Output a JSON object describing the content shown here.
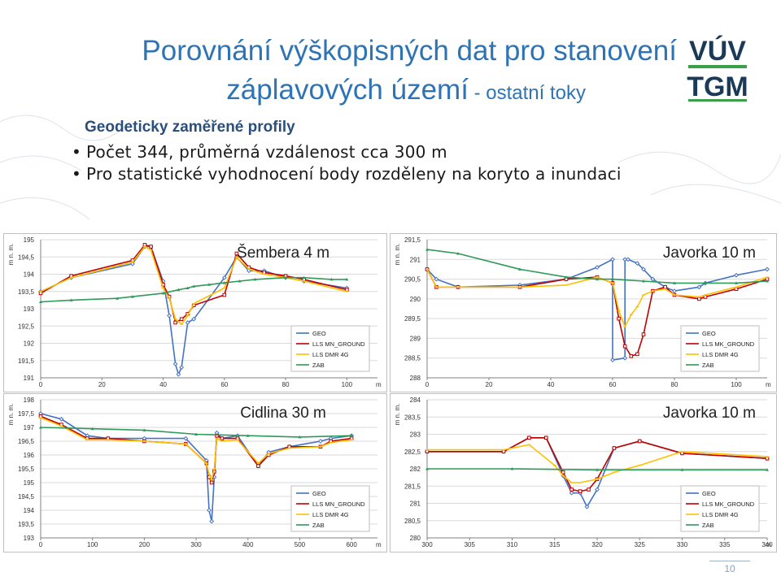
{
  "title": {
    "line1": "Porovnání výškopisných dat pro stanovení",
    "line2": "záplavových území",
    "line2_suffix": " - ostatní toky"
  },
  "logo": {
    "top": "VÚV",
    "bottom": "TGM"
  },
  "heading": "Geodeticky zaměřené profily",
  "bullets": [
    "Počet 344, průměrná vzdálenost cca 300 m",
    "Pro statistické vyhodnocení body rozděleny na koryto a inundaci"
  ],
  "page_number": "10",
  "colors": {
    "GEO": "#4472c4",
    "LLS": "#c00000",
    "DMR": "#ffc000",
    "ZAB": "#2e9a5a",
    "accent": "#2e74b5"
  },
  "chart_data": [
    {
      "type": "line",
      "title": "Šembera 4 m",
      "ylabel": "m n. m.",
      "xlabel": "m",
      "xlim": [
        0,
        110
      ],
      "ylim": [
        191,
        195
      ],
      "xticks": [
        0,
        20,
        40,
        60,
        80,
        100
      ],
      "yticks": [
        191,
        191.5,
        192,
        192.5,
        193,
        193.5,
        194,
        194.5,
        195
      ],
      "ytick_labels": [
        "191",
        "191,5",
        "192",
        "192,5",
        "193",
        "193,5",
        "194",
        "194,5",
        "195"
      ],
      "legend": [
        "GEO",
        "LLS MN_GROUND",
        "LLS DMR 4G",
        "ZAB"
      ],
      "series": [
        {
          "name": "GEO",
          "x": [
            0,
            10,
            30,
            34,
            36,
            40,
            42,
            44,
            45,
            46,
            48,
            50,
            60,
            64,
            68,
            73,
            80,
            86,
            100
          ],
          "y": [
            193.5,
            193.9,
            194.3,
            194.8,
            194.8,
            193.8,
            192.8,
            191.4,
            191.1,
            191.3,
            192.6,
            192.7,
            193.9,
            194.5,
            194.1,
            194.1,
            193.9,
            193.8,
            193.6
          ]
        },
        {
          "name": "LLS MN_GROUND",
          "x": [
            0,
            10,
            30,
            34,
            36,
            40,
            42,
            44,
            46,
            48,
            50,
            60,
            64,
            68,
            73,
            80,
            86,
            100
          ],
          "y": [
            193.45,
            193.95,
            194.4,
            194.85,
            194.8,
            193.7,
            193.35,
            192.6,
            192.7,
            192.85,
            193.1,
            193.4,
            194.6,
            194.2,
            194.05,
            193.95,
            193.85,
            193.55
          ]
        },
        {
          "name": "LLS DMR 4G",
          "x": [
            0,
            10,
            30,
            34,
            36,
            40,
            42,
            44,
            46,
            48,
            50,
            60,
            64,
            68,
            73,
            80,
            86,
            100
          ],
          "y": [
            193.5,
            193.9,
            194.35,
            194.8,
            194.7,
            193.6,
            193.3,
            192.7,
            192.55,
            192.8,
            193.15,
            193.6,
            194.5,
            194.15,
            194.0,
            193.9,
            193.8,
            193.5
          ]
        },
        {
          "name": "ZAB",
          "x": [
            0,
            10,
            25,
            30,
            40,
            45,
            48,
            50,
            55,
            60,
            65,
            70,
            80,
            86,
            95,
            100
          ],
          "y": [
            193.2,
            193.25,
            193.3,
            193.35,
            193.45,
            193.55,
            193.6,
            193.65,
            193.7,
            193.75,
            193.8,
            193.85,
            193.9,
            193.9,
            193.85,
            193.85
          ]
        }
      ]
    },
    {
      "type": "line",
      "title": "Javorka 10 m",
      "ylabel": "m n. m.",
      "xlabel": "m",
      "xlim": [
        0,
        110
      ],
      "ylim": [
        288,
        291.5
      ],
      "xticks": [
        0,
        20,
        40,
        60,
        80,
        100
      ],
      "yticks": [
        288,
        288.5,
        289,
        289.5,
        290,
        290.5,
        291,
        291.5
      ],
      "ytick_labels": [
        "288",
        "288,5",
        "289",
        "289,5",
        "290",
        "290,5",
        "291",
        "291,5"
      ],
      "legend": [
        "GEO",
        "LLS MK_GROUND",
        "LLS DMR 4G",
        "ZAB"
      ],
      "series": [
        {
          "name": "GEO",
          "x": [
            0,
            3,
            10,
            30,
            45,
            55,
            60,
            60,
            64,
            64,
            65,
            68,
            70,
            73,
            77,
            80,
            88,
            90,
            100,
            110
          ],
          "y": [
            290.75,
            290.5,
            290.3,
            290.35,
            290.5,
            290.8,
            291.0,
            288.45,
            288.5,
            291.0,
            291.0,
            290.9,
            290.75,
            290.5,
            290.3,
            290.2,
            290.3,
            290.4,
            290.6,
            290.75
          ]
        },
        {
          "name": "LLS MK_GROUND",
          "x": [
            0,
            3,
            10,
            30,
            45,
            55,
            60,
            62,
            64,
            66,
            68,
            70,
            73,
            77,
            80,
            88,
            90,
            100,
            110
          ],
          "y": [
            290.75,
            290.3,
            290.3,
            290.3,
            290.5,
            290.55,
            290.4,
            289.5,
            288.8,
            288.55,
            288.6,
            289.1,
            290.2,
            290.3,
            290.1,
            290.0,
            290.05,
            290.25,
            290.5
          ]
        },
        {
          "name": "LLS DMR 4G",
          "x": [
            0,
            3,
            10,
            30,
            45,
            55,
            60,
            62,
            64,
            66,
            68,
            70,
            73,
            77,
            80,
            88,
            90,
            100,
            110
          ],
          "y": [
            290.75,
            290.3,
            290.3,
            290.3,
            290.35,
            290.55,
            290.4,
            289.7,
            289.3,
            289.6,
            289.8,
            290.1,
            290.2,
            290.25,
            290.1,
            290.05,
            290.1,
            290.3,
            290.55
          ]
        },
        {
          "name": "ZAB",
          "x": [
            0,
            10,
            30,
            45,
            55,
            60,
            70,
            80,
            90,
            100,
            110
          ],
          "y": [
            291.25,
            291.15,
            290.75,
            290.55,
            290.5,
            290.5,
            290.45,
            290.4,
            290.4,
            290.4,
            290.45
          ]
        }
      ]
    },
    {
      "type": "line",
      "title": "Cidlina 30 m",
      "ylabel": "m n. m.",
      "xlabel": "m",
      "xlim": [
        0,
        650
      ],
      "ylim": [
        193,
        198
      ],
      "xticks": [
        0,
        100,
        200,
        300,
        400,
        500,
        600
      ],
      "yticks": [
        193,
        193.5,
        194,
        194.5,
        195,
        195.5,
        196,
        196.5,
        197,
        197.5,
        198
      ],
      "ytick_labels": [
        "193",
        "193,5",
        "194",
        "194,5",
        "195",
        "195,5",
        "196",
        "196,5",
        "197",
        "197,5",
        "198"
      ],
      "legend": [
        "GEO",
        "LLS MN_GROUND",
        "LLS DMR 4G",
        "ZAB"
      ],
      "series": [
        {
          "name": "GEO",
          "x": [
            0,
            40,
            90,
            130,
            200,
            280,
            320,
            325,
            330,
            335,
            340,
            350,
            380,
            420,
            440,
            480,
            540,
            560,
            600
          ],
          "y": [
            197.5,
            197.3,
            196.7,
            196.6,
            196.6,
            196.6,
            195.8,
            194.0,
            193.6,
            195.2,
            196.8,
            196.6,
            196.7,
            195.6,
            196.1,
            196.3,
            196.5,
            196.6,
            196.7
          ]
        },
        {
          "name": "LLS MN_GROUND",
          "x": [
            0,
            40,
            90,
            130,
            200,
            280,
            320,
            325,
            330,
            335,
            340,
            350,
            380,
            420,
            440,
            480,
            540,
            560,
            600
          ],
          "y": [
            197.4,
            197.1,
            196.6,
            196.6,
            196.5,
            196.4,
            195.7,
            195.2,
            195.0,
            195.4,
            196.7,
            196.6,
            196.6,
            195.6,
            196.0,
            196.3,
            196.3,
            196.5,
            196.6
          ]
        },
        {
          "name": "LLS DMR 4G",
          "x": [
            0,
            40,
            90,
            130,
            200,
            280,
            320,
            325,
            330,
            335,
            340,
            350,
            380,
            420,
            440,
            480,
            540,
            560,
            600
          ],
          "y": [
            197.35,
            197.05,
            196.55,
            196.55,
            196.5,
            196.4,
            195.7,
            195.3,
            195.1,
            195.5,
            196.6,
            196.5,
            196.55,
            195.7,
            196.05,
            196.25,
            196.3,
            196.45,
            196.55
          ]
        },
        {
          "name": "ZAB",
          "x": [
            0,
            100,
            200,
            300,
            400,
            500,
            600
          ],
          "y": [
            197.0,
            196.95,
            196.9,
            196.75,
            196.7,
            196.65,
            196.7
          ]
        }
      ]
    },
    {
      "type": "line",
      "title": "Javorka 10 m",
      "ylabel": "m n. m.",
      "xlabel": "m",
      "xlim": [
        300,
        340
      ],
      "ylim": [
        280,
        284
      ],
      "xticks": [
        300,
        305,
        310,
        315,
        320,
        325,
        330,
        335,
        340
      ],
      "yticks": [
        280,
        280.5,
        281,
        281.5,
        282,
        282.5,
        283,
        283.5,
        284
      ],
      "ytick_labels": [
        "280",
        "280,5",
        "281",
        "281,5",
        "282",
        "282,5",
        "283",
        "283,5",
        "284"
      ],
      "legend": [
        "GEO",
        "LLS MK_GROUND",
        "LLS DMR 4G",
        "ZAB"
      ],
      "series": [
        {
          "name": "GEO",
          "x": [
            300,
            309,
            312,
            314,
            316,
            317,
            318,
            318.8,
            320,
            322,
            325,
            330,
            340
          ],
          "y": [
            282.5,
            282.5,
            282.9,
            282.9,
            281.8,
            281.3,
            281.3,
            280.9,
            281.4,
            282.6,
            282.8,
            282.45,
            282.3
          ]
        },
        {
          "name": "LLS MK_GROUND",
          "x": [
            300,
            309,
            312,
            314,
            316,
            317,
            318,
            319,
            320,
            322,
            325,
            330,
            340
          ],
          "y": [
            282.5,
            282.5,
            282.9,
            282.9,
            281.9,
            281.4,
            281.35,
            281.4,
            281.7,
            282.6,
            282.8,
            282.45,
            282.3
          ]
        },
        {
          "name": "LLS DMR 4G",
          "x": [
            300,
            309,
            312,
            315,
            316,
            317,
            318,
            319,
            320,
            322,
            325,
            330,
            340
          ],
          "y": [
            282.55,
            282.55,
            282.7,
            282.1,
            281.8,
            281.6,
            281.6,
            281.65,
            281.7,
            281.9,
            282.1,
            282.5,
            282.35
          ]
        },
        {
          "name": "ZAB",
          "x": [
            300,
            310,
            320,
            330,
            340
          ],
          "y": [
            282.0,
            282.0,
            281.97,
            281.97,
            281.97
          ]
        }
      ]
    }
  ]
}
